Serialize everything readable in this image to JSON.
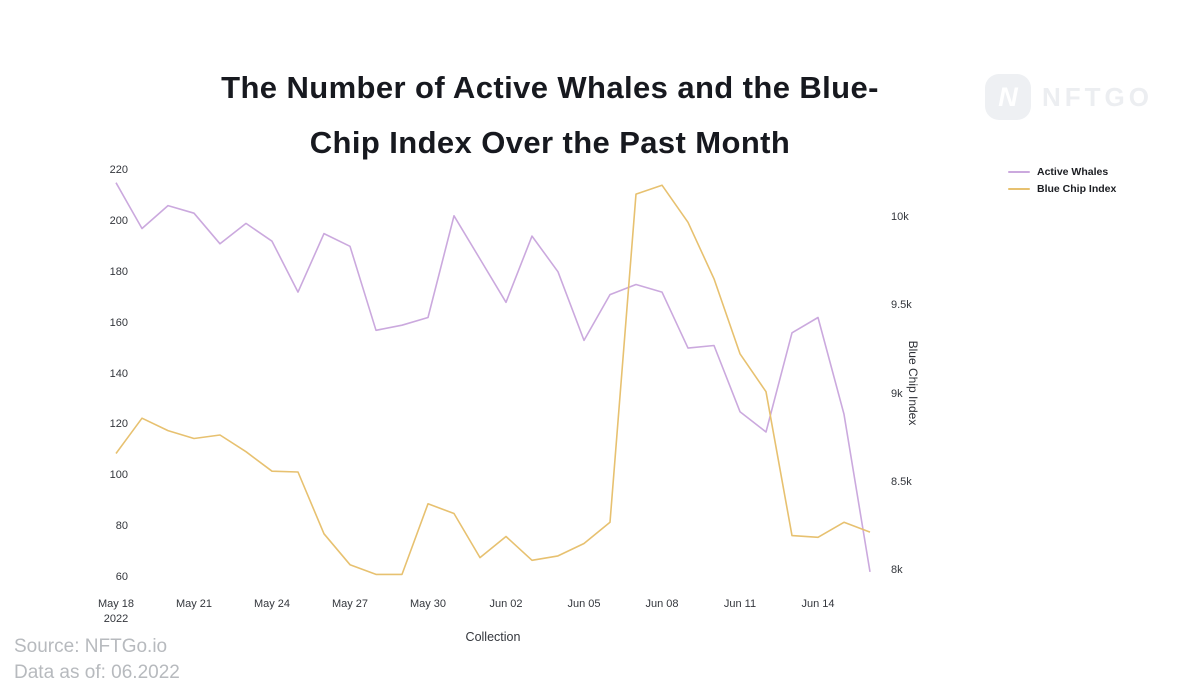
{
  "header": {
    "title_lines": [
      "The Number of Active Whales and the Blue-",
      "Chip Index Over the Past Month"
    ],
    "logo": {
      "mark_letter": "N",
      "text": "NFTGO"
    }
  },
  "footer": {
    "source": "Source: NFTGo.io",
    "data_as_of": "Data as of: 06.2022"
  },
  "chart_data": {
    "type": "line",
    "title": "The Number of Active Whales and the Blue-Chip Index Over the Past Month",
    "x": [
      "May 18",
      "May 19",
      "May 20",
      "May 21",
      "May 22",
      "May 23",
      "May 24",
      "May 25",
      "May 26",
      "May 27",
      "May 28",
      "May 29",
      "May 30",
      "May 31",
      "Jun 01",
      "Jun 02",
      "Jun 03",
      "Jun 04",
      "Jun 05",
      "Jun 06",
      "Jun 07",
      "Jun 08",
      "Jun 09",
      "Jun 10",
      "Jun 11",
      "Jun 12",
      "Jun 13",
      "Jun 14",
      "Jun 15",
      "Jun 16"
    ],
    "x_axis": {
      "title": "Collection",
      "tick_labels": [
        "May 18\n2022",
        "May 21",
        "May 24",
        "May 27",
        "May 30",
        "Jun 02",
        "Jun 05",
        "Jun 08",
        "Jun 11",
        "Jun 14"
      ],
      "tick_step_days": 3
    },
    "left_axis": {
      "ticks": [
        220,
        200,
        180,
        160,
        140,
        120,
        100,
        80,
        60
      ],
      "range": [
        60,
        220
      ],
      "grid": false
    },
    "right_axis": {
      "title": "Blue Chip Index",
      "ticks": [
        {
          "label": "10k",
          "value": 10000
        },
        {
          "label": "9.5k",
          "value": 9500
        },
        {
          "label": "9k",
          "value": 9000
        },
        {
          "label": "8.5k",
          "value": 8500
        },
        {
          "label": "8k",
          "value": 8000
        }
      ],
      "range": [
        8000,
        10000
      ],
      "grid": false
    },
    "legend": {
      "position": "top-right"
    },
    "series": [
      {
        "name": "Active Whales",
        "axis": "left",
        "color": "#cba9de",
        "values": [
          215,
          197,
          206,
          203,
          191,
          199,
          192,
          172,
          195,
          190,
          157,
          159,
          162,
          202,
          185,
          168,
          194,
          180,
          153,
          171,
          175,
          172,
          150,
          151,
          125,
          117,
          156,
          162,
          124,
          62
        ]
      },
      {
        "name": "Blue Chip Index",
        "axis": "right",
        "color": "#e7c170",
        "values": [
          8660,
          8860,
          8790,
          8745,
          8765,
          8670,
          8560,
          8555,
          8205,
          8030,
          7975,
          7975,
          8375,
          8320,
          8070,
          8190,
          8055,
          8080,
          8150,
          8270,
          10130,
          10180,
          9970,
          9650,
          9225,
          9010,
          8195,
          8185,
          8270,
          8215
        ]
      }
    ]
  }
}
